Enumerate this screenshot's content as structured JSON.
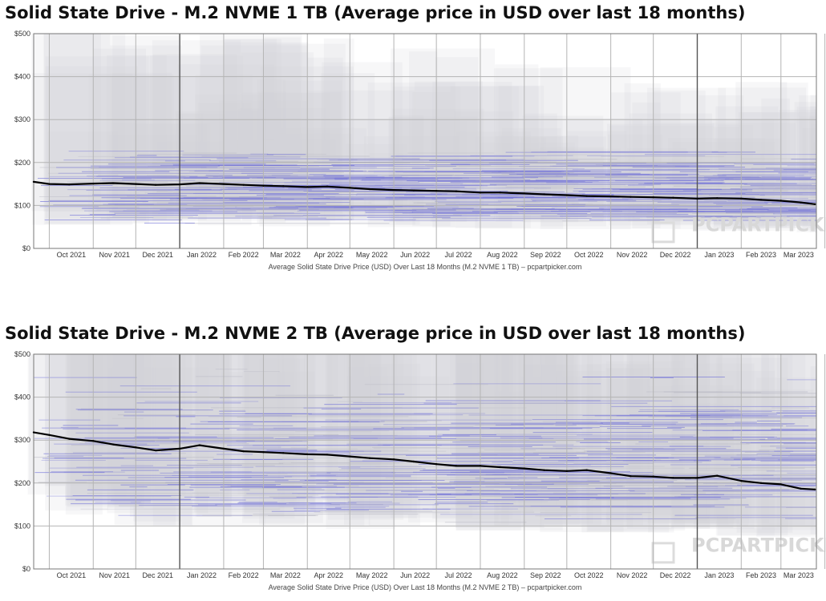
{
  "chart_data": [
    {
      "type": "line",
      "title": "Solid State Drive - M.2 NVME 1 TB (Average price in USD over last 18 months)",
      "xlabel": "Average Solid State Drive Price (USD) Over Last 18 Months (M.2 NVME 1 TB) – pcpartpicker.com",
      "ylabel": "",
      "x_tick_labels": [
        "Oct 2021",
        "Nov 2021",
        "Dec 2021",
        "Jan 2022",
        "Feb 2022",
        "Mar 2022",
        "Apr 2022",
        "May 2022",
        "Jun 2022",
        "Jul 2022",
        "Aug 2022",
        "Sep 2022",
        "Oct 2022",
        "Nov 2022",
        "Dec 2022",
        "Jan 2023",
        "Feb 2023",
        "Mar 2023"
      ],
      "y_tick_labels": [
        "$0",
        "$100",
        "$200",
        "$300",
        "$400",
        "$500"
      ],
      "ylim": [
        0,
        500
      ],
      "grid": true,
      "watermark": "PCPARTPICKER",
      "series": [
        {
          "color": "#000000",
          "x": [
            "2021-09-20",
            "2021-10-01",
            "2021-10-15",
            "2021-11-01",
            "2021-11-15",
            "2021-12-01",
            "2021-12-15",
            "2022-01-01",
            "2022-01-15",
            "2022-02-01",
            "2022-02-15",
            "2022-03-01",
            "2022-03-15",
            "2022-04-01",
            "2022-04-15",
            "2022-05-01",
            "2022-05-15",
            "2022-06-01",
            "2022-06-15",
            "2022-07-01",
            "2022-07-15",
            "2022-08-01",
            "2022-08-15",
            "2022-09-01",
            "2022-09-15",
            "2022-10-01",
            "2022-10-15",
            "2022-11-01",
            "2022-11-15",
            "2022-12-01",
            "2022-12-15",
            "2023-01-01",
            "2023-01-15",
            "2023-02-01",
            "2023-02-15",
            "2023-03-01",
            "2023-03-15",
            "2023-03-25"
          ],
          "values": [
            155,
            150,
            149,
            151,
            152,
            150,
            148,
            149,
            152,
            150,
            148,
            146,
            145,
            143,
            144,
            141,
            138,
            136,
            135,
            134,
            133,
            130,
            130,
            128,
            126,
            124,
            122,
            121,
            120,
            119,
            118,
            116,
            117,
            116,
            113,
            111,
            107,
            103
          ]
        }
      ]
    },
    {
      "type": "line",
      "title": "Solid State Drive - M.2 NVME 2 TB (Average price in USD over last 18 months)",
      "xlabel": "Average Solid State Drive Price (USD) Over Last 18 Months (M.2 NVME 2 TB) – pcpartpicker.com",
      "ylabel": "",
      "x_tick_labels": [
        "Oct 2021",
        "Nov 2021",
        "Dec 2021",
        "Jan 2022",
        "Feb 2022",
        "Mar 2022",
        "Apr 2022",
        "May 2022",
        "Jun 2022",
        "Jul 2022",
        "Aug 2022",
        "Sep 2022",
        "Oct 2022",
        "Nov 2022",
        "Dec 2022",
        "Jan 2023",
        "Feb 2023",
        "Mar 2023"
      ],
      "y_tick_labels": [
        "$0",
        "$100",
        "$200",
        "$300",
        "$400",
        "$500"
      ],
      "ylim": [
        0,
        500
      ],
      "grid": true,
      "watermark": "PCPARTPICKER",
      "series": [
        {
          "color": "#000000",
          "x": [
            "2021-09-20",
            "2021-10-01",
            "2021-10-15",
            "2021-11-01",
            "2021-11-15",
            "2021-12-01",
            "2021-12-15",
            "2022-01-01",
            "2022-01-15",
            "2022-02-01",
            "2022-02-15",
            "2022-03-01",
            "2022-03-15",
            "2022-04-01",
            "2022-04-15",
            "2022-05-01",
            "2022-05-15",
            "2022-06-01",
            "2022-06-15",
            "2022-07-01",
            "2022-07-15",
            "2022-08-01",
            "2022-08-15",
            "2022-09-01",
            "2022-09-15",
            "2022-10-01",
            "2022-10-15",
            "2022-11-01",
            "2022-11-15",
            "2022-12-01",
            "2022-12-15",
            "2023-01-01",
            "2023-01-15",
            "2023-02-01",
            "2023-02-15",
            "2023-03-01",
            "2023-03-15",
            "2023-03-25"
          ],
          "values": [
            318,
            312,
            303,
            298,
            290,
            283,
            276,
            280,
            288,
            280,
            274,
            272,
            270,
            267,
            266,
            262,
            258,
            255,
            250,
            244,
            240,
            240,
            237,
            234,
            230,
            228,
            230,
            223,
            216,
            215,
            212,
            212,
            217,
            205,
            200,
            197,
            187,
            185
          ]
        }
      ]
    }
  ]
}
